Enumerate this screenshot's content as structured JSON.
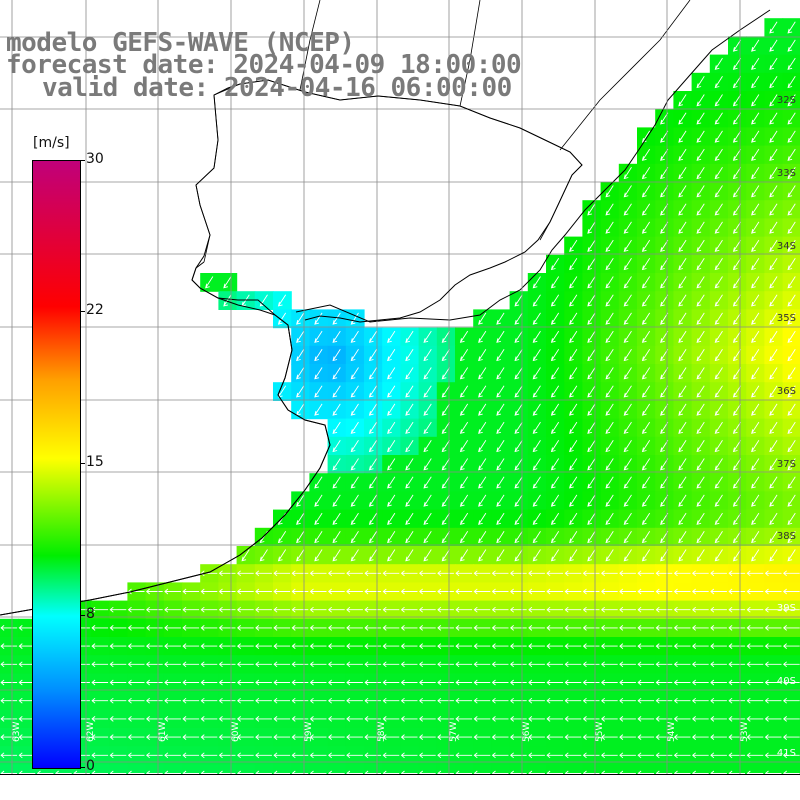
{
  "title": {
    "line1": "modelo GEFS-WAVE (NCEP)",
    "line2": "forecast date: 2024-04-09 18:00:00",
    "line3": "valid date: 2024-04-16 06:00:00"
  },
  "colorbar": {
    "unit": "[m/s]",
    "ticks": [
      "30",
      "22",
      "15",
      "8",
      "0"
    ],
    "colors": [
      "#0000ff",
      "#0090ff",
      "#00ffff",
      "#00ee00",
      "#ffff00",
      "#ff9f00",
      "#ff0000",
      "#c0007a"
    ]
  },
  "lat_labels": [
    "32S",
    "33S",
    "34S",
    "35S",
    "36S",
    "37S",
    "38S",
    "39S",
    "40S",
    "41S"
  ],
  "lon_labels": [
    "63W",
    "62W",
    "61W",
    "60W",
    "59W",
    "58W",
    "57W",
    "56W",
    "55W",
    "54W",
    "53W"
  ],
  "map": {
    "land_color": "#ffffff",
    "grid_color": "#808080",
    "coast_color": "#000000",
    "arrow_color": "#ffffff"
  }
}
